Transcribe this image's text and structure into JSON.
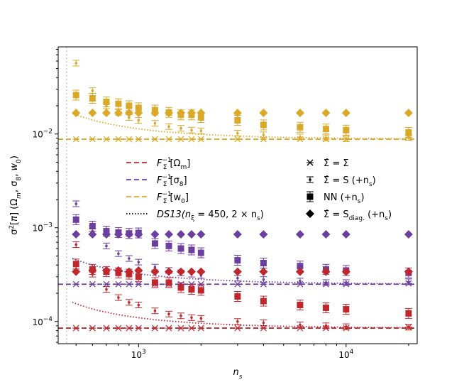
{
  "chart_data": {
    "type": "scatter",
    "title": "",
    "xlabel": "n_s",
    "ylabel": "σ²[π] (Ω_m, σ_8, w_0)",
    "xscale": "log",
    "yscale": "log",
    "xlim": [
      410,
      22000
    ],
    "ylim": [
      5.8e-05,
      0.085
    ],
    "x_ticks": [
      {
        "value": 1000,
        "base": "10",
        "exp": "3"
      },
      {
        "value": 10000,
        "base": "10",
        "exp": "4"
      }
    ],
    "y_ticks": [
      {
        "value": 0.0001,
        "base": "10",
        "exp": "−4"
      },
      {
        "value": 0.001,
        "base": "10",
        "exp": "−3"
      },
      {
        "value": 0.01,
        "base": "10",
        "exp": "−2"
      }
    ],
    "vline": {
      "x": 450,
      "color": "#c9c9c9"
    },
    "colors": {
      "omega_m": "#c0272d",
      "sigma8": "#6b3fa0",
      "w0": "#dba928"
    },
    "ns": [
      500,
      600,
      700,
      800,
      900,
      1000,
      1200,
      1400,
      1600,
      1800,
      2000,
      3000,
      4000,
      6000,
      8000,
      10000,
      20000
    ],
    "series": [
      {
        "name": "F_Σ^{-1}[Ω_m]",
        "param": "omega_m",
        "kind": "fisher_true",
        "value": 8.5e-05
      },
      {
        "name": "F_Σ^{-1}[σ_8]",
        "param": "sigma8",
        "kind": "fisher_true",
        "value": 0.00025
      },
      {
        "name": "F_Σ^{-1}[w_0]",
        "param": "w0",
        "kind": "fisher_true",
        "value": 0.0088
      },
      {
        "name": "DS13 Ω_m",
        "param": "omega_m",
        "kind": "ds13",
        "base": 8.5e-05,
        "nxi": 450
      },
      {
        "name": "DS13 σ_8",
        "param": "sigma8",
        "kind": "ds13",
        "base": 0.00025,
        "nxi": 450
      },
      {
        "name": "DS13 w_0",
        "param": "w0",
        "kind": "ds13",
        "base": 0.0088,
        "nxi": 450
      },
      {
        "name": "Σ̂=Σ Ω_m",
        "param": "omega_m",
        "kind": "true_cov",
        "marker": "x",
        "values": [
          8.5e-05,
          8.5e-05,
          8.5e-05,
          8.5e-05,
          8.5e-05,
          8.5e-05,
          8.5e-05,
          8.5e-05,
          8.5e-05,
          8.5e-05,
          8.5e-05,
          8.5e-05,
          8.5e-05,
          8.5e-05,
          8.5e-05,
          8.5e-05,
          8.7e-05
        ]
      },
      {
        "name": "Σ̂=Σ σ_8",
        "param": "sigma8",
        "kind": "true_cov",
        "marker": "x",
        "values": [
          0.00025,
          0.00025,
          0.00025,
          0.00025,
          0.00025,
          0.00025,
          0.00025,
          0.00025,
          0.00025,
          0.00025,
          0.00025,
          0.00025,
          0.00025,
          0.00025,
          0.00025,
          0.00025,
          0.000255
        ]
      },
      {
        "name": "Σ̂=Σ w_0",
        "param": "w0",
        "kind": "true_cov",
        "marker": "x",
        "values": [
          0.0088,
          0.0088,
          0.0088,
          0.0088,
          0.0088,
          0.0088,
          0.0088,
          0.0088,
          0.0088,
          0.0088,
          0.0088,
          0.0088,
          0.0088,
          0.0088,
          0.0088,
          0.0088,
          0.0095
        ]
      },
      {
        "name": "Σ̂=S Ω_m",
        "param": "omega_m",
        "kind": "sample",
        "marker": "dot",
        "values": [
          0.00066,
          0.00032,
          0.00022,
          0.00018,
          0.00016,
          0.00015,
          0.00013,
          0.00012,
          0.000115,
          0.00011,
          0.000108,
          0.0001,
          9.7e-05,
          9.2e-05,
          9e-05,
          8.8e-05,
          8.7e-05
        ]
      },
      {
        "name": "Σ̂=S σ_8",
        "param": "sigma8",
        "kind": "sample",
        "marker": "dot",
        "values": [
          0.0018,
          0.00092,
          0.00064,
          0.00053,
          0.00047,
          0.00043,
          0.00038,
          0.00035,
          0.00033,
          0.00032,
          0.00031,
          0.00029,
          0.00028,
          0.00027,
          0.00026,
          0.00026,
          0.000265
        ]
      },
      {
        "name": "Σ̂=S w_0",
        "param": "w0",
        "kind": "sample",
        "marker": "dot",
        "values": [
          0.057,
          0.029,
          0.02,
          0.017,
          0.015,
          0.014,
          0.013,
          0.012,
          0.0115,
          0.011,
          0.0108,
          0.0102,
          0.0098,
          0.0093,
          0.0091,
          0.0089,
          0.0092
        ]
      },
      {
        "name": "NN Ω_m",
        "param": "omega_m",
        "kind": "nn",
        "marker": "square",
        "values": [
          0.00041,
          0.00036,
          0.00034,
          0.00033,
          0.00032,
          0.0003,
          0.00026,
          0.00026,
          0.00023,
          0.00022,
          0.000215,
          0.000185,
          0.000165,
          0.00015,
          0.00014,
          0.000135,
          0.000122
        ]
      },
      {
        "name": "NN σ_8",
        "param": "sigma8",
        "kind": "nn",
        "marker": "square",
        "values": [
          0.00122,
          0.00104,
          0.00092,
          0.00089,
          0.00087,
          0.00088,
          0.00068,
          0.00064,
          0.0006,
          0.00058,
          0.00054,
          0.00045,
          0.00042,
          0.00039,
          0.00036,
          0.00035,
          0.00033
        ]
      },
      {
        "name": "NN w_0",
        "param": "w0",
        "kind": "nn",
        "marker": "square",
        "values": [
          0.026,
          0.024,
          0.022,
          0.021,
          0.02,
          0.019,
          0.018,
          0.017,
          0.016,
          0.016,
          0.015,
          0.014,
          0.0125,
          0.0118,
          0.0113,
          0.011,
          0.0104
        ]
      },
      {
        "name": "Σ̂=S_diag. Ω_m",
        "param": "omega_m",
        "kind": "diag",
        "marker": "diamond",
        "values": [
          0.00034,
          0.00035,
          0.00035,
          0.00035,
          0.00034,
          0.00035,
          0.00034,
          0.00034,
          0.00034,
          0.00034,
          0.00034,
          0.00034,
          0.00034,
          0.00034,
          0.00034,
          0.00034,
          0.00034
        ]
      },
      {
        "name": "Σ̂=S_diag. σ_8",
        "param": "sigma8",
        "kind": "diag",
        "marker": "diamond",
        "values": [
          0.00085,
          0.00085,
          0.00085,
          0.00085,
          0.00085,
          0.00085,
          0.00085,
          0.00085,
          0.00085,
          0.00085,
          0.00085,
          0.00085,
          0.00085,
          0.00085,
          0.00085,
          0.00085,
          0.00085
        ]
      },
      {
        "name": "Σ̂=S_diag. w_0",
        "param": "w0",
        "kind": "diag",
        "marker": "diamond",
        "values": [
          0.0168,
          0.0168,
          0.0168,
          0.0168,
          0.0168,
          0.0168,
          0.0168,
          0.0168,
          0.0168,
          0.0168,
          0.0168,
          0.0168,
          0.0168,
          0.0168,
          0.0168,
          0.0168,
          0.0168
        ]
      }
    ],
    "legend_left": [
      {
        "pre": "F",
        "sub1": "Σ",
        "sup1": "−1",
        "post": "[Ω",
        "sub2": "m",
        "end": "]",
        "color": "#c0272d",
        "style": "dashed"
      },
      {
        "pre": "F",
        "sub1": "Σ",
        "sup1": "−1",
        "post": "[σ",
        "sub2": "8",
        "end": "]",
        "color": "#6b3fa0",
        "style": "dashed"
      },
      {
        "pre": "F",
        "sub1": "Σ",
        "sup1": "−1",
        "post": "[w",
        "sub2": "0",
        "end": "]",
        "color": "#dba928",
        "style": "dashed"
      },
      {
        "pre": "DS13(n",
        "sub1": "ξ",
        "sup1": "",
        "post": " = 450, 2 × n",
        "sub2": "s",
        "end": ")",
        "color": "#000000",
        "style": "dotted"
      }
    ],
    "legend_right": [
      {
        "marker": "x",
        "label": "Σ̂ = Σ"
      },
      {
        "marker": "dot",
        "label": "Σ̂ = S (+n",
        "sub": "s",
        "end": ")"
      },
      {
        "marker": "square",
        "label": "NN (+n",
        "sub": "s",
        "end": ")"
      },
      {
        "marker": "diamond",
        "label": "Σ̂ = S",
        "sub": "diag.",
        "end": " (+n",
        "sub2": "s",
        "end2": ")"
      }
    ],
    "legend_placement": "center"
  }
}
